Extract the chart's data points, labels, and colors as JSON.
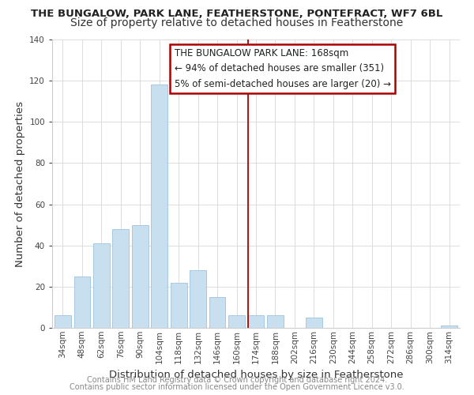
{
  "title": "THE BUNGALOW, PARK LANE, FEATHERSTONE, PONTEFRACT, WF7 6BL",
  "subtitle": "Size of property relative to detached houses in Featherstone",
  "xlabel": "Distribution of detached houses by size in Featherstone",
  "ylabel": "Number of detached properties",
  "bar_labels": [
    "34sqm",
    "48sqm",
    "62sqm",
    "76sqm",
    "90sqm",
    "104sqm",
    "118sqm",
    "132sqm",
    "146sqm",
    "160sqm",
    "174sqm",
    "188sqm",
    "202sqm",
    "216sqm",
    "230sqm",
    "244sqm",
    "258sqm",
    "272sqm",
    "286sqm",
    "300sqm",
    "314sqm"
  ],
  "bar_values": [
    6,
    25,
    41,
    48,
    50,
    118,
    22,
    28,
    15,
    6,
    6,
    6,
    0,
    5,
    0,
    0,
    0,
    0,
    0,
    0,
    1
  ],
  "bar_color": "#c8dff0",
  "bar_edge_color": "#a8c8e0",
  "annotation_title": "THE BUNGALOW PARK LANE: 168sqm",
  "annotation_line1": "← 94% of detached houses are smaller (351)",
  "annotation_line2": "5% of semi-detached houses are larger (20) →",
  "annotation_box_color": "#ffffff",
  "annotation_border_color": "#aa0000",
  "marker_color": "#aa0000",
  "ylim": [
    0,
    140
  ],
  "yticks": [
    0,
    20,
    40,
    60,
    80,
    100,
    120,
    140
  ],
  "footer1": "Contains HM Land Registry data © Crown copyright and database right 2024.",
  "footer2": "Contains public sector information licensed under the Open Government Licence v3.0.",
  "bg_color": "#ffffff",
  "grid_color": "#dddddd",
  "title_fontsize": 9.5,
  "subtitle_fontsize": 10,
  "axis_label_fontsize": 9.5,
  "tick_fontsize": 7.5,
  "annotation_fontsize": 8.5,
  "footer_fontsize": 7.0
}
